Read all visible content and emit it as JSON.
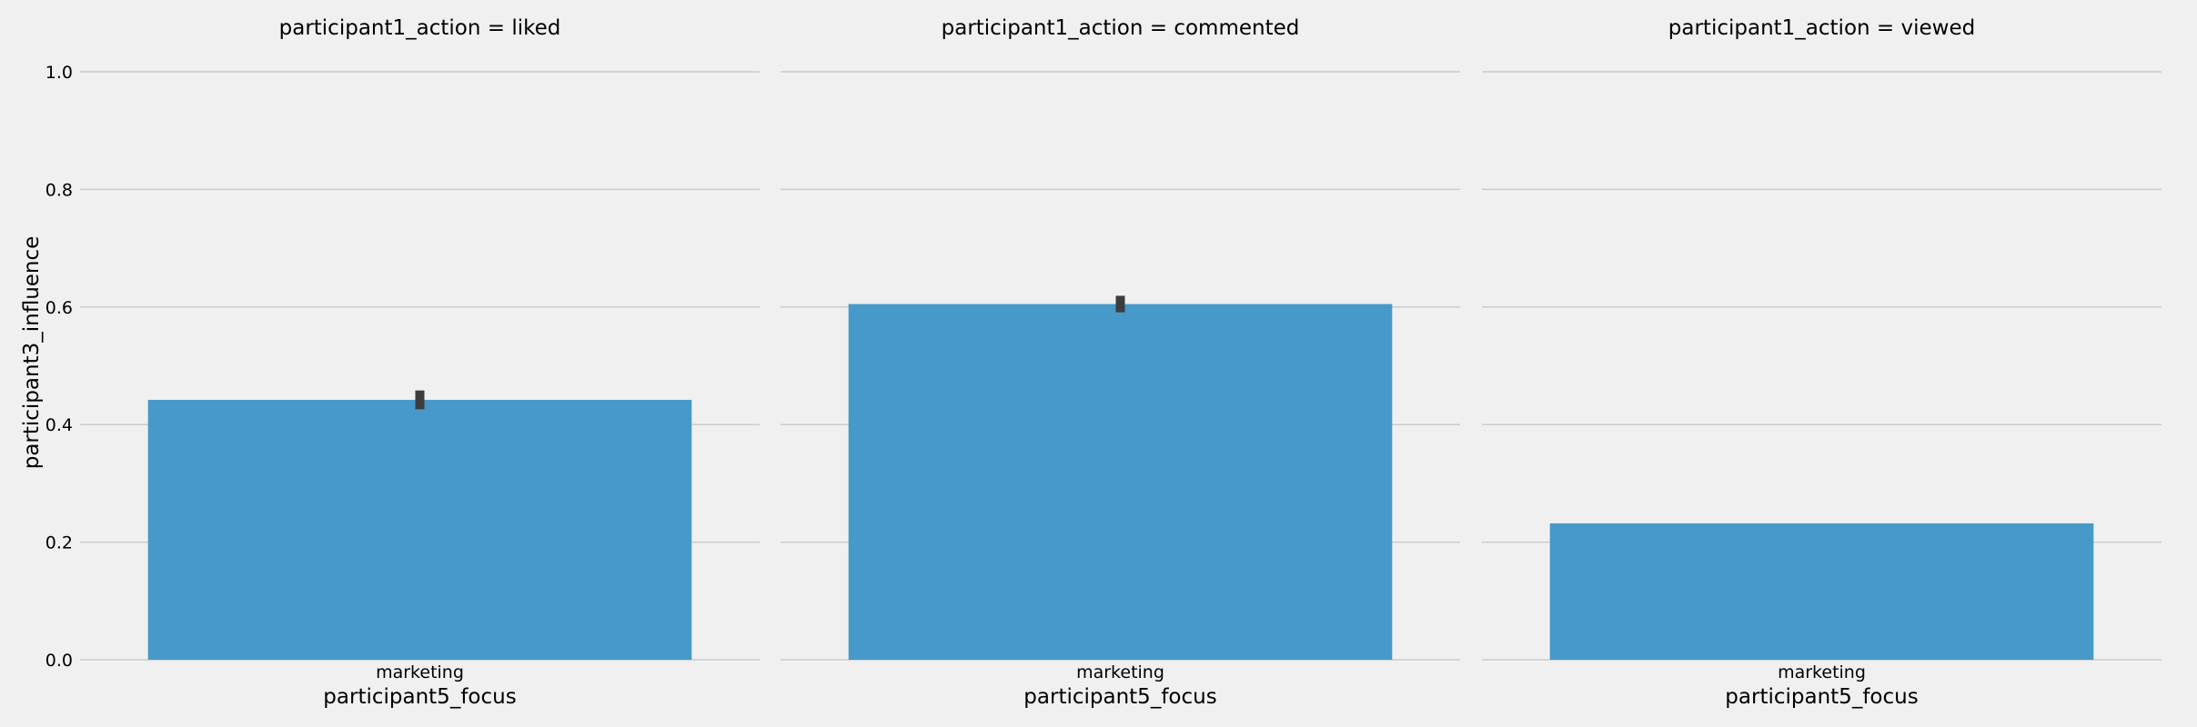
{
  "chart_data": {
    "type": "bar",
    "ylabel": "participant3_influence",
    "xlabel": "participant5_focus",
    "ylim": [
      0,
      1.0
    ],
    "yticks": [
      "0.0",
      "0.2",
      "0.4",
      "0.6",
      "0.8",
      "1.0"
    ],
    "grid": true,
    "bar_color": "#4699c8",
    "errorbar_color": "#3d3d3d",
    "background": "#f0f0f0",
    "panels": [
      {
        "title": "participant1_action = liked",
        "categories": [
          "marketing"
        ],
        "values": [
          0.442
        ],
        "error": [
          0.426,
          0.458
        ]
      },
      {
        "title": "participant1_action = commented",
        "categories": [
          "marketing"
        ],
        "values": [
          0.605
        ],
        "error": [
          0.591,
          0.619
        ]
      },
      {
        "title": "participant1_action = viewed",
        "categories": [
          "marketing"
        ],
        "values": [
          0.232
        ],
        "error": null
      }
    ]
  }
}
